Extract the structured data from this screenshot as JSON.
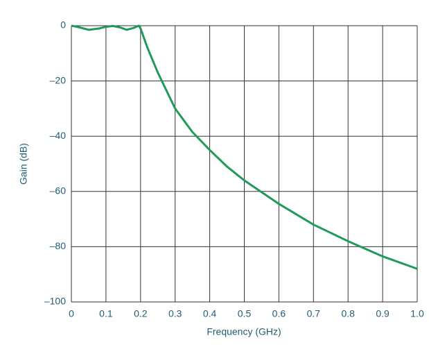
{
  "chart_data": {
    "type": "line",
    "x_label": "Frequency (GHz)",
    "y_label": "Gain (dB)",
    "x": [
      0,
      0.02,
      0.05,
      0.08,
      0.1,
      0.12,
      0.14,
      0.16,
      0.18,
      0.195,
      0.2,
      0.22,
      0.25,
      0.3,
      0.35,
      0.4,
      0.45,
      0.5,
      0.6,
      0.7,
      0.8,
      0.9,
      1.0
    ],
    "series": [
      {
        "name": "Gain",
        "color": "#1f9a5a",
        "values": [
          0,
          -0.5,
          -1.5,
          -1,
          -0.4,
          -0.1,
          -0.6,
          -1.5,
          -0.8,
          0,
          -1,
          -8,
          -17,
          -30,
          -38.5,
          -45,
          -51,
          -56,
          -64.5,
          -72,
          -78,
          -83.5,
          -88
        ]
      }
    ],
    "xlim": [
      0,
      1
    ],
    "ylim": [
      -100,
      0
    ],
    "xticks": [
      0,
      0.1,
      0.2,
      0.3,
      0.4,
      0.5,
      0.6,
      0.7,
      0.8,
      0.9,
      {
        "value": 1,
        "label": "1.0"
      }
    ],
    "yticks": [
      0,
      {
        "value": -20,
        "label": "–20"
      },
      {
        "value": -40,
        "label": "–40"
      },
      {
        "value": -60,
        "label": "–60"
      },
      {
        "value": -80,
        "label": "–80"
      },
      {
        "value": -100,
        "label": "–100"
      }
    ],
    "grid": true
  }
}
